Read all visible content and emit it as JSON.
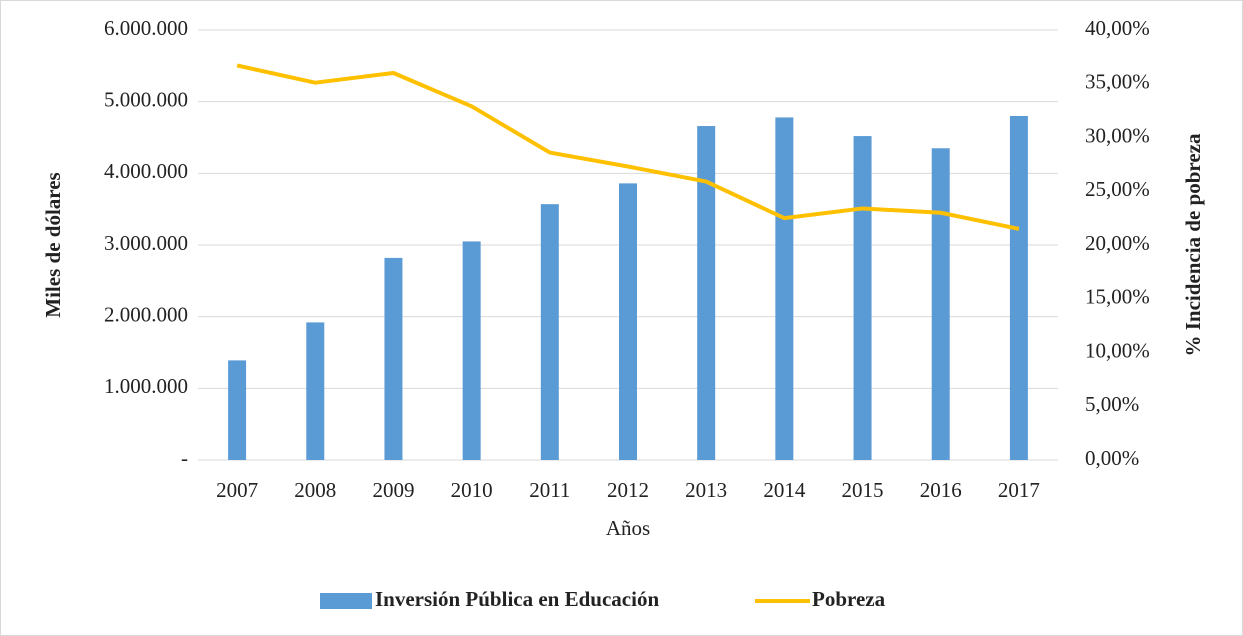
{
  "chart_data": {
    "type": "bar+line",
    "xlabel": "Años",
    "ylabel": "Miles de dólares",
    "y2label": "% Incidencia de pobreza",
    "categories": [
      "2007",
      "2008",
      "2009",
      "2010",
      "2011",
      "2012",
      "2013",
      "2014",
      "2015",
      "2016",
      "2017"
    ],
    "series": [
      {
        "name": "Inversión Pública en Educación",
        "type": "bar",
        "color": "#5b9bd5",
        "values": [
          1390000,
          1920000,
          2820000,
          3050000,
          3570000,
          3860000,
          4660000,
          4780000,
          4520000,
          4350000,
          4800000
        ]
      },
      {
        "name": "Pobreza",
        "type": "line",
        "color": "#ffc000",
        "axis": "y2",
        "values": [
          36.7,
          35.1,
          36.0,
          32.9,
          28.6,
          27.3,
          25.9,
          22.5,
          23.4,
          23.0,
          21.5
        ]
      }
    ],
    "ylim": [
      0,
      6000000
    ],
    "yticks": [
      {
        "value": 0,
        "label": "-"
      },
      {
        "value": 1000000,
        "label": "1.000.000"
      },
      {
        "value": 2000000,
        "label": "2.000.000"
      },
      {
        "value": 3000000,
        "label": "3.000.000"
      },
      {
        "value": 4000000,
        "label": "4.000.000"
      },
      {
        "value": 5000000,
        "label": "5.000.000"
      },
      {
        "value": 6000000,
        "label": "6.000.000"
      }
    ],
    "y2lim": [
      0,
      40
    ],
    "y2ticks": [
      {
        "value": 0,
        "label": "0,00%"
      },
      {
        "value": 5,
        "label": "5,00%"
      },
      {
        "value": 10,
        "label": "10,00%"
      },
      {
        "value": 15,
        "label": "15,00%"
      },
      {
        "value": 20,
        "label": "20,00%"
      },
      {
        "value": 25,
        "label": "25,00%"
      },
      {
        "value": 30,
        "label": "30,00%"
      },
      {
        "value": 35,
        "label": "35,00%"
      },
      {
        "value": 40,
        "label": "40,00%"
      }
    ],
    "grid": true,
    "legend": "bottom"
  }
}
